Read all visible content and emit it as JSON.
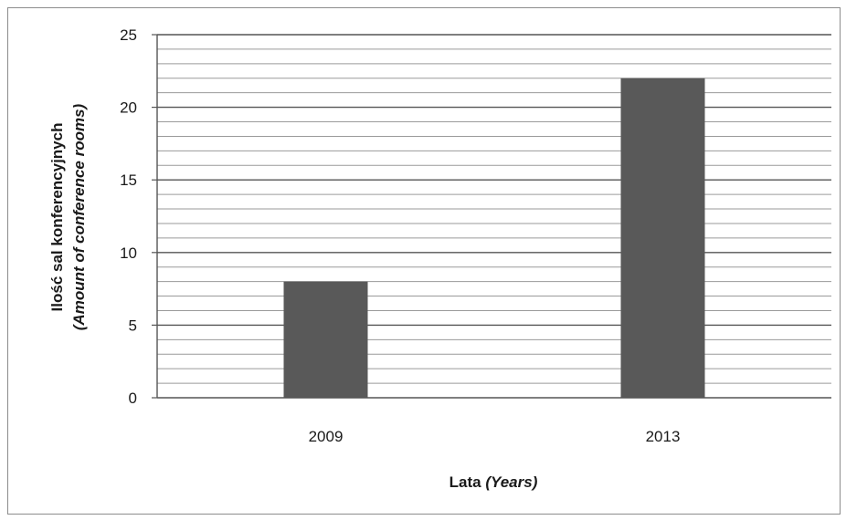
{
  "chart_data": {
    "type": "bar",
    "categories": [
      "2009",
      "2013"
    ],
    "values": [
      8,
      22
    ],
    "ylim": [
      0,
      25
    ],
    "y_major_ticks": [
      0,
      5,
      10,
      15,
      20,
      25
    ],
    "y_minor_step": 1,
    "grid": true,
    "legend": "none",
    "title": "",
    "xlabel": "Lata",
    "xlabel_italic": "(Years)",
    "ylabel": "Ilość sal konferencyjnych",
    "ylabel_italic": "(Amount of conference  rooms)",
    "bar_color": "#595959",
    "grid_major_color": "#555555",
    "grid_minor_color": "#9a9a9a"
  }
}
